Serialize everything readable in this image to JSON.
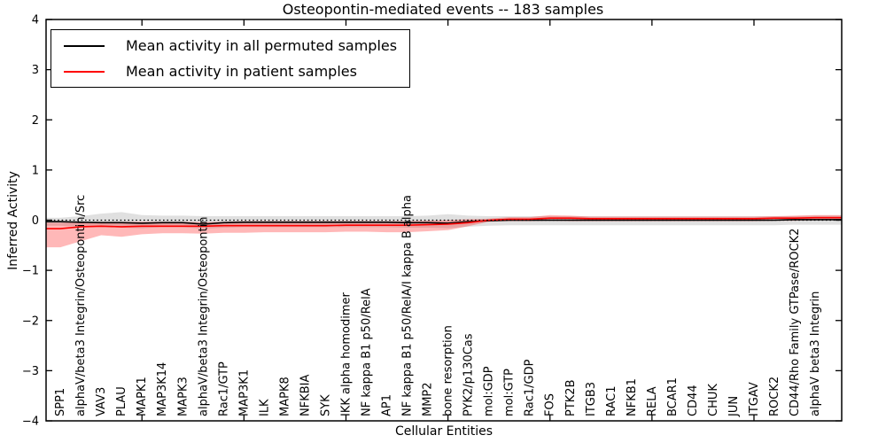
{
  "chart_data": {
    "type": "line",
    "title": "Osteopontin-mediated events -- 183 samples",
    "xlabel": "Cellular Entities",
    "ylabel": "Inferred Activity",
    "ylim": [
      -4,
      4
    ],
    "xlim": [
      0.3,
      39.3
    ],
    "grid": false,
    "legend_position": "upper left",
    "y_ticks": [
      {
        "value": 4,
        "label": "4"
      },
      {
        "value": 3,
        "label": "3"
      },
      {
        "value": 2,
        "label": "2"
      },
      {
        "value": 1,
        "label": "1"
      },
      {
        "value": 0,
        "label": "0"
      },
      {
        "value": -1,
        "label": "−1"
      },
      {
        "value": -2,
        "label": "−2"
      },
      {
        "value": -3,
        "label": "−3"
      },
      {
        "value": -4,
        "label": "−4"
      }
    ],
    "x_tick_positions": [
      5,
      10,
      15,
      20,
      25,
      30,
      35
    ],
    "baseline": {
      "y": 0,
      "style": "dotted",
      "color": "#000000"
    },
    "categories": [
      "SPP1",
      "alphaV/beta3 Integrin/Osteopontin/Src",
      "VAV3",
      "PLAU",
      "MAPK1",
      "MAP3K14",
      "MAPK3",
      "alphaV/beta3 Integrin/Osteopontin",
      "Rac1/GTP",
      "MAP3K1",
      "ILK",
      "MAPK8",
      "NFKBIA",
      "SYK",
      "IKK alpha homodimer",
      "NF kappa B1 p50/RelA",
      "AP1",
      "NF kappa B1 p50/RelA/I kappa B alpha",
      "MMP2",
      "bone resorption",
      "PYK2/p130Cas",
      "mol:GDP",
      "mol:GTP",
      "Rac1/GDP",
      "FOS",
      "PTK2B",
      "ITGB3",
      "RAC1",
      "NFKB1",
      "RELA",
      "BCAR1",
      "CD44",
      "CHUK",
      "JUN",
      "ITGAV",
      "ROCK2",
      "CD44/Rho Family GTPase/ROCK2",
      "alphaV beta3 Integrin"
    ],
    "series": [
      {
        "name": "Mean activity in all permuted samples",
        "color": "#000000",
        "style": "solid",
        "values": [
          -0.03,
          -0.04,
          -0.05,
          -0.05,
          -0.06,
          -0.05,
          -0.05,
          -0.08,
          -0.05,
          -0.04,
          -0.04,
          -0.04,
          -0.04,
          -0.04,
          -0.04,
          -0.04,
          -0.04,
          -0.05,
          -0.05,
          -0.06,
          -0.03,
          -0.01,
          0,
          0,
          0,
          0,
          0,
          0,
          0,
          0,
          0,
          0,
          0,
          0,
          0,
          0,
          0.01,
          0.01
        ]
      },
      {
        "name": "Mean activity in patient samples",
        "color": "#ff0000",
        "style": "solid",
        "values": [
          -0.17,
          -0.13,
          -0.12,
          -0.13,
          -0.12,
          -0.12,
          -0.12,
          -0.12,
          -0.11,
          -0.11,
          -0.11,
          -0.11,
          -0.11,
          -0.11,
          -0.1,
          -0.1,
          -0.1,
          -0.1,
          -0.09,
          -0.08,
          -0.05,
          0,
          0.02,
          0.02,
          0.04,
          0.04,
          0.03,
          0.03,
          0.03,
          0.03,
          0.03,
          0.03,
          0.03,
          0.03,
          0.03,
          0.04,
          0.04,
          0.05
        ]
      }
    ],
    "bands": [
      {
        "name": "permuted-samples-band",
        "color": "#000000",
        "opacity": 0.12,
        "high": [
          0.05,
          0.08,
          0.13,
          0.16,
          0.1,
          0.09,
          0.09,
          0.08,
          0.08,
          0.08,
          0.08,
          0.08,
          0.08,
          0.08,
          0.08,
          0.08,
          0.08,
          0.08,
          0.09,
          0.12,
          0.09,
          0.08,
          0.08,
          0.08,
          0.08,
          0.08,
          0.08,
          0.08,
          0.08,
          0.08,
          0.08,
          0.08,
          0.08,
          0.08,
          0.08,
          0.08,
          0.08,
          0.09
        ],
        "low": [
          -0.11,
          -0.13,
          -0.14,
          -0.15,
          -0.16,
          -0.14,
          -0.14,
          -0.17,
          -0.15,
          -0.14,
          -0.14,
          -0.14,
          -0.14,
          -0.14,
          -0.14,
          -0.14,
          -0.14,
          -0.15,
          -0.15,
          -0.16,
          -0.13,
          -0.11,
          -0.1,
          -0.1,
          -0.1,
          -0.1,
          -0.1,
          -0.1,
          -0.1,
          -0.1,
          -0.1,
          -0.1,
          -0.1,
          -0.1,
          -0.1,
          -0.1,
          -0.09,
          -0.09
        ]
      },
      {
        "name": "patient-samples-band",
        "color": "#ff0000",
        "opacity": 0.28,
        "high": [
          -0.05,
          -0.04,
          -0.03,
          -0.03,
          -0.03,
          -0.03,
          -0.03,
          -0.04,
          -0.03,
          -0.02,
          -0.02,
          -0.02,
          -0.02,
          -0.02,
          -0.02,
          -0.02,
          -0.02,
          -0.02,
          -0.01,
          0,
          0.02,
          0.03,
          0.06,
          0.06,
          0.1,
          0.09,
          0.07,
          0.07,
          0.07,
          0.07,
          0.07,
          0.07,
          0.07,
          0.07,
          0.07,
          0.08,
          0.09,
          0.1
        ],
        "low": [
          -0.54,
          -0.42,
          -0.3,
          -0.33,
          -0.28,
          -0.26,
          -0.26,
          -0.27,
          -0.25,
          -0.25,
          -0.24,
          -0.24,
          -0.24,
          -0.24,
          -0.23,
          -0.23,
          -0.24,
          -0.24,
          -0.22,
          -0.2,
          -0.12,
          -0.03,
          -0.02,
          -0.02,
          -0.01,
          -0.02,
          -0.02,
          -0.02,
          -0.02,
          -0.02,
          -0.02,
          -0.02,
          -0.02,
          -0.02,
          -0.02,
          -0.01,
          -0.01,
          0
        ]
      }
    ]
  }
}
